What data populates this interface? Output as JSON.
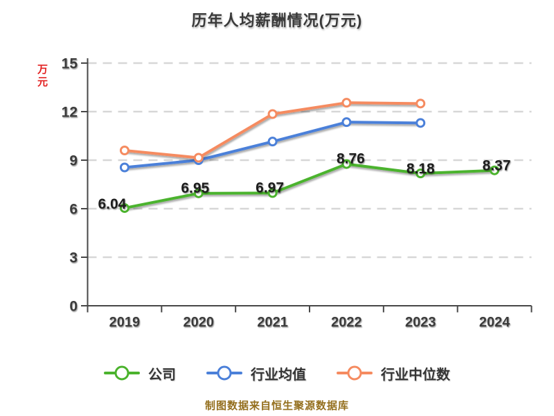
{
  "title": "历年人均薪酬情况(万元)",
  "y_unit_label": "万元",
  "footer": "制图数据来自恒生聚源数据库",
  "colors": {
    "company": "#4bb32d",
    "industry_avg": "#4b80d9",
    "industry_median": "#f58b60",
    "title_text": "#3a3a3a",
    "axis_text": "#3a3a3a",
    "data_label_text": "#1d1d1d",
    "grid_line": "#d7d7d7",
    "axis_line": "#474747",
    "unit_label_text": "#e32222",
    "footer_text": "#946f1e",
    "marker_fill": "#ffffff"
  },
  "chart_data": {
    "type": "line",
    "title": "历年人均薪酬情况(万元)",
    "x_categories": [
      "2019",
      "2020",
      "2021",
      "2022",
      "2023",
      "2024"
    ],
    "series": [
      {
        "name": "公司",
        "color": "#4bb32d",
        "values": [
          6.04,
          6.95,
          6.97,
          8.76,
          8.18,
          8.37
        ],
        "show_labels": true,
        "labels": [
          "6.04",
          "6.95",
          "6.97",
          "8.76",
          "8.18",
          "8.37"
        ],
        "label_offsets": [
          [
            -18,
            -6
          ],
          [
            -5,
            -8
          ],
          [
            -4,
            -8
          ],
          [
            6,
            -8
          ],
          [
            0,
            -7
          ],
          [
            3,
            -7
          ]
        ]
      },
      {
        "name": "行业均值",
        "color": "#4b80d9",
        "values": [
          8.55,
          9.0,
          10.15,
          11.35,
          11.3,
          null
        ],
        "show_labels": false
      },
      {
        "name": "行业中位数",
        "color": "#f58b60",
        "values": [
          9.6,
          9.15,
          11.85,
          12.55,
          12.5,
          null
        ],
        "show_labels": false
      }
    ],
    "ylim": [
      0,
      15
    ],
    "yticks": [
      0,
      3,
      6,
      9,
      12,
      15
    ],
    "grid": "horizontal-dashed",
    "legend_position": "bottom",
    "legend_order": [
      "公司",
      "行业均值",
      "行业中位数"
    ]
  }
}
